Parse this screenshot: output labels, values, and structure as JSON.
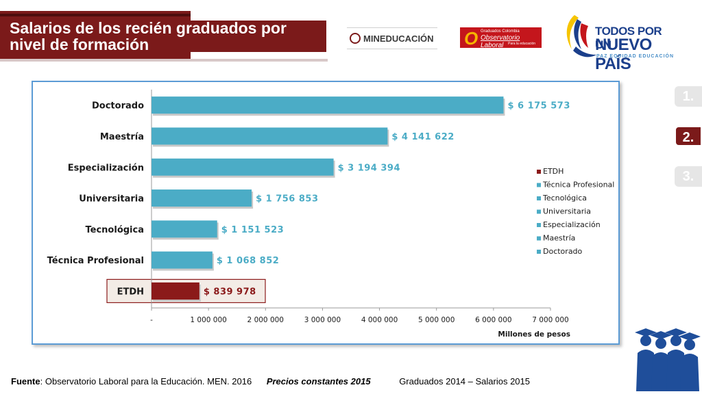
{
  "header": {
    "title_line1": "Salarios de los recién graduados por",
    "title_line2": "nivel de formación"
  },
  "logos": {
    "mineducacion": "MINEDUCACIÓN",
    "observatorio_small": "Graduados Colombia",
    "observatorio_main": "Observatorio Laboral",
    "observatorio_sub": "Para la educación",
    "tpn_line1": "TODOS POR UN",
    "tpn_line2": "NUEVO PAÍS",
    "tpn_line3": "PAZ  EQUIDAD  EDUCACIÓN"
  },
  "steps": [
    "1.",
    "2.",
    "3."
  ],
  "active_step": 1,
  "colors": {
    "bar": "#4bacc6",
    "highlight_bar": "#8b1a1a",
    "value_label": "#4bacc6",
    "highlight_label": "#8b1a1a",
    "accent": "#7b1a1a"
  },
  "chart_data": {
    "type": "bar",
    "orientation": "horizontal",
    "categories": [
      "Doctorado",
      "Maestría",
      "Especialización",
      "Universitaria",
      "Tecnológica",
      "Técnica Profesional",
      "ETDH"
    ],
    "values": [
      6175573,
      4141622,
      3194394,
      1756853,
      1151523,
      1068852,
      839978
    ],
    "value_labels": [
      "$ 6 175 573",
      "$ 4 141 622",
      "$ 3 194 394",
      "$ 1 756 853",
      "$ 1 151 523",
      "$ 1 068 852",
      "$ 839 978"
    ],
    "highlight_category": "ETDH",
    "xlim": [
      0,
      7000000
    ],
    "x_ticks": [
      "-",
      "1 000 000",
      "2 000 000",
      "3 000 000",
      "4 000 000",
      "5 000 000",
      "6 000 000",
      "7 000 000"
    ],
    "xlabel": "Millones de pesos",
    "legend": [
      "ETDH",
      "Técnica Profesional",
      "Tecnológica",
      "Universitaria",
      "Especialización",
      "Maestría",
      "Doctorado"
    ],
    "legend_position": "right",
    "grid": false
  },
  "footer": {
    "source_label": "Fuente",
    "source_text": ": Observatorio Laboral para la Educación. MEN. 2016",
    "prices": "Precios constantes  2015",
    "period": "Graduados 2014 – Salarios 2015"
  }
}
